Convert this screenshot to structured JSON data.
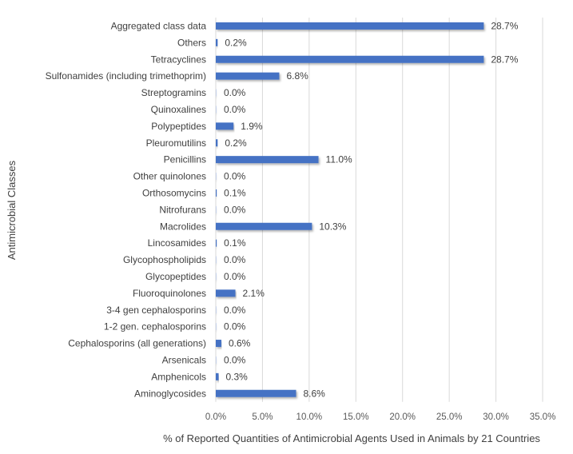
{
  "chart_data": {
    "type": "bar",
    "orientation": "horizontal",
    "title": "",
    "xlabel": "% of Reported Quantities of Antimicrobial Agents Used in Animals by 21 Countries",
    "ylabel": "Antimicrobial Classes",
    "xlim": [
      0,
      35
    ],
    "xticks": [
      "0.0%",
      "5.0%",
      "10.0%",
      "15.0%",
      "20.0%",
      "25.0%",
      "30.0%",
      "35.0%"
    ],
    "grid": true,
    "bar_color": "#4472C4",
    "categories": [
      "Aggregated class data",
      "Others",
      "Tetracyclines",
      "Sulfonamides (including trimethoprim)",
      "Streptogramins",
      "Quinoxalines",
      "Polypeptides",
      "Pleuromutilins",
      "Penicillins",
      "Other quinolones",
      "Orthosomycins",
      "Nitrofurans",
      "Macrolides",
      "Lincosamides",
      "Glycophospholipids",
      "Glycopeptides",
      "Fluoroquinolones",
      "3-4 gen cephalosporins",
      "1-2 gen. cephalosporins",
      "Cephalosporins (all generations)",
      "Arsenicals",
      "Amphenicols",
      "Aminoglycosides"
    ],
    "values": [
      28.7,
      0.2,
      28.7,
      6.8,
      0.0,
      0.0,
      1.9,
      0.2,
      11.0,
      0.0,
      0.1,
      0.0,
      10.3,
      0.1,
      0.0,
      0.0,
      2.1,
      0.0,
      0.0,
      0.6,
      0.0,
      0.3,
      8.6
    ],
    "data_labels": [
      "28.7%",
      "0.2%",
      "28.7%",
      "6.8%",
      "0.0%",
      "0.0%",
      "1.9%",
      "0.2%",
      "11.0%",
      "0.0%",
      "0.1%",
      "0.0%",
      "10.3%",
      "0.1%",
      "0.0%",
      "0.0%",
      "2.1%",
      "0.0%",
      "0.0%",
      "0.6%",
      "0.0%",
      "0.3%",
      "8.6%"
    ]
  }
}
